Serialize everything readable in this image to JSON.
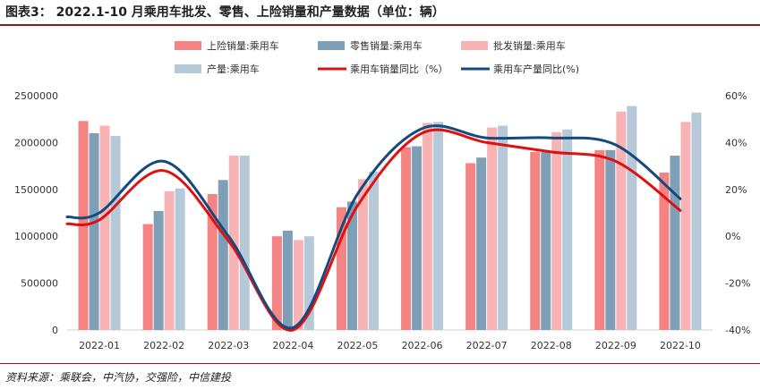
{
  "header": {
    "title": "图表3： 2022.1-10 月乘用车批发、零售、上险销量和产量数据（单位：辆）"
  },
  "footer": {
    "source": "资料来源：乘联会，中汽协，交强险，中信建投"
  },
  "colors": {
    "insurance": "#f48383",
    "retail": "#7f9fb7",
    "wholesale": "#f8b4b4",
    "production": "#b5c9d8",
    "sales_yoy": "#e01010",
    "production_yoy": "#174a7c",
    "title_rule": "#8b1a1a"
  },
  "chart_data": {
    "type": "bar",
    "title": "",
    "categories": [
      "2022-01",
      "2022-02",
      "2022-03",
      "2022-04",
      "2022-05",
      "2022-06",
      "2022-07",
      "2022-08",
      "2022-09",
      "2022-10"
    ],
    "series": [
      {
        "name": "上险销量:乘用车",
        "type": "bar",
        "axis": "left",
        "color": "#f48383",
        "values": [
          2230000,
          1130000,
          1450000,
          1000000,
          1310000,
          1950000,
          1780000,
          1900000,
          1920000,
          1680000
        ]
      },
      {
        "name": "零售销量:乘用车",
        "type": "bar",
        "axis": "left",
        "color": "#7f9fb7",
        "values": [
          2100000,
          1270000,
          1600000,
          1060000,
          1370000,
          1960000,
          1840000,
          1900000,
          1920000,
          1860000
        ]
      },
      {
        "name": "批发销量:乘用车",
        "type": "bar",
        "axis": "left",
        "color": "#f8b4b4",
        "values": [
          2180000,
          1480000,
          1860000,
          960000,
          1610000,
          2210000,
          2160000,
          2110000,
          2330000,
          2220000
        ]
      },
      {
        "name": "产量:乘用车",
        "type": "bar",
        "axis": "left",
        "color": "#b5c9d8",
        "values": [
          2070000,
          1510000,
          1860000,
          1000000,
          1690000,
          2220000,
          2180000,
          2140000,
          2390000,
          2320000
        ]
      },
      {
        "name": "乘用车销量同比（%）",
        "type": "line",
        "axis": "right",
        "color": "#e01010",
        "values": [
          7,
          28,
          -2,
          -40,
          13,
          44,
          40,
          36,
          32,
          11
        ]
      },
      {
        "name": "乘用车产量同比(%)",
        "type": "line",
        "axis": "right",
        "color": "#174a7c",
        "values": [
          10,
          32,
          0,
          -39,
          18,
          46,
          42,
          42,
          39,
          16
        ]
      }
    ],
    "left_axis": {
      "min": 0,
      "max": 2500000,
      "ticks": [
        0,
        500000,
        1000000,
        1500000,
        2000000,
        2500000
      ]
    },
    "right_axis": {
      "min": -40,
      "max": 60,
      "ticks": [
        -40,
        -20,
        0,
        20,
        40,
        60
      ],
      "tick_labels": [
        "-40%",
        "-20%",
        "0%",
        "20%",
        "40%",
        "60%"
      ]
    },
    "xlabel": "",
    "ylabel": "",
    "legend_position": "top",
    "grid": false
  }
}
